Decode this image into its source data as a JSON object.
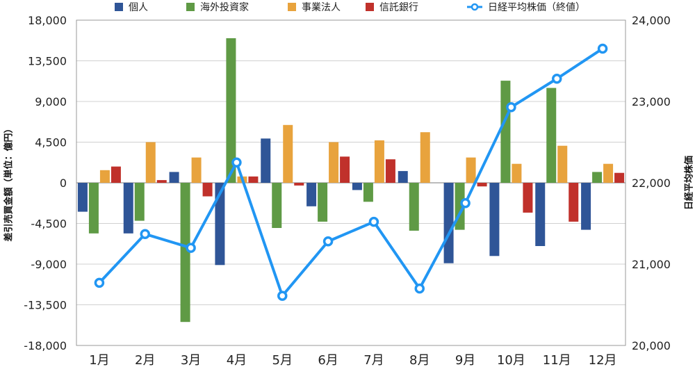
{
  "chart_data": {
    "type": "bar",
    "categories": [
      "1月",
      "2月",
      "3月",
      "4月",
      "5月",
      "6月",
      "7月",
      "8月",
      "9月",
      "10月",
      "11月",
      "12月"
    ],
    "series": [
      {
        "name": "個人",
        "color": "#2f5597",
        "values": [
          -3200,
          -5600,
          1200,
          -9100,
          4900,
          -2600,
          -800,
          1300,
          -8900,
          -8100,
          -7000,
          -5200
        ]
      },
      {
        "name": "海外投資家",
        "color": "#5f9a45",
        "values": [
          -5600,
          -4200,
          -15400,
          16000,
          -5000,
          -4300,
          -2100,
          -5300,
          -5200,
          11300,
          10500,
          1200
        ]
      },
      {
        "name": "事業法人",
        "color": "#e8a33d",
        "values": [
          1400,
          4500,
          2800,
          700,
          6400,
          4500,
          4700,
          5600,
          2800,
          2100,
          4100,
          2100
        ]
      },
      {
        "name": "信託銀行",
        "color": "#c0312b",
        "values": [
          1800,
          300,
          -1500,
          700,
          -300,
          2900,
          2600,
          0,
          -400,
          -3300,
          -4300,
          1100
        ]
      }
    ],
    "line_series": {
      "name": "日経平均株価（終値）",
      "color": "#2196f3",
      "values": [
        20770,
        21370,
        21200,
        22250,
        20610,
        21280,
        21520,
        20700,
        21750,
        22930,
        23280,
        23650
      ]
    },
    "ylabel_left": "差引売買金額（単位：億円）",
    "ylabel_right": "日経平均株価",
    "ylim_left": [
      -18000,
      18000
    ],
    "yticks_left": [
      "18,000",
      "13,500",
      "9,000",
      "4,500",
      "0",
      "-4,500",
      "-9,000",
      "-13,500",
      "-18,000"
    ],
    "ylim_right": [
      20000,
      24000
    ],
    "yticks_right": [
      "24,000",
      "23,000",
      "22,000",
      "21,000",
      "20,000"
    ],
    "grid": true,
    "legend_position": "top"
  }
}
